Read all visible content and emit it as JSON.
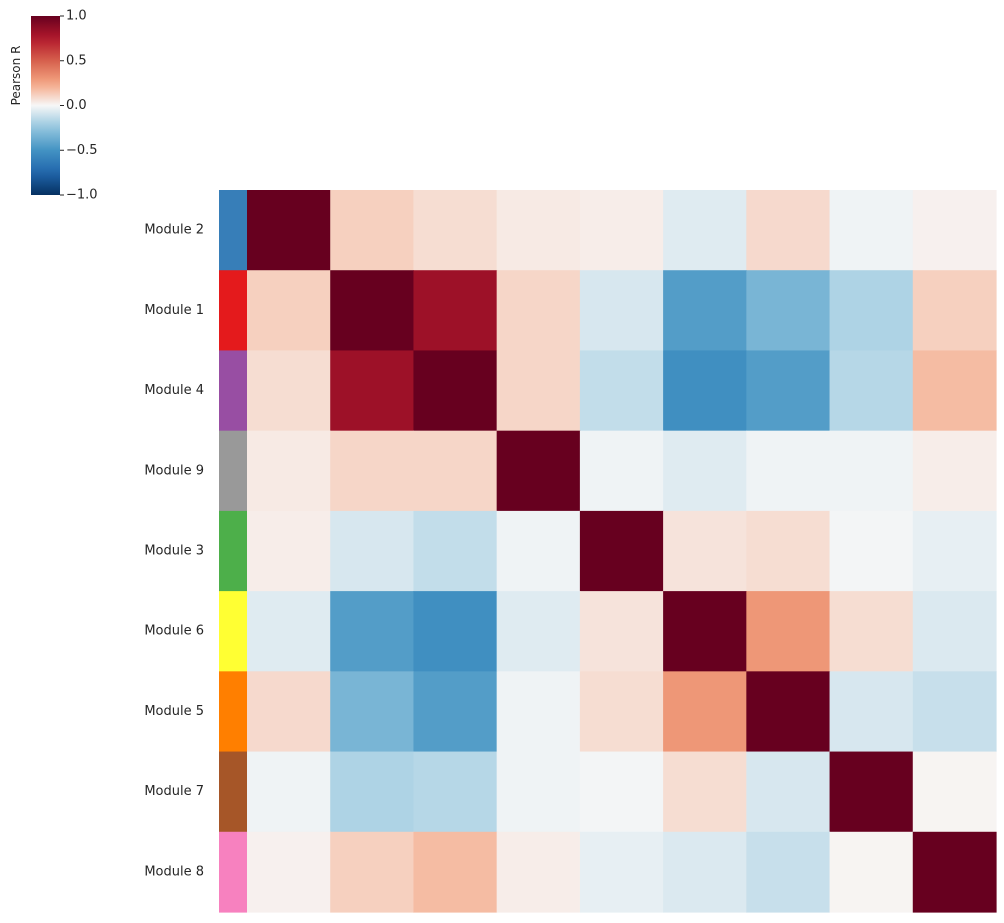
{
  "chart_data": {
    "type": "heatmap",
    "title": "",
    "rows": [
      "Module 2",
      "Module 1",
      "Module 4",
      "Module 9",
      "Module 3",
      "Module 6",
      "Module 5",
      "Module 7",
      "Module 8"
    ],
    "row_colors": [
      "#377eb8",
      "#e41a1c",
      "#984ea3",
      "#999999",
      "#4daf4a",
      "#ffff33",
      "#ff7f00",
      "#a65628",
      "#f781bf"
    ],
    "values": [
      [
        1.0,
        0.12,
        0.08,
        0.04,
        0.03,
        -0.06,
        0.09,
        -0.02,
        0.02
      ],
      [
        0.12,
        1.0,
        0.82,
        0.1,
        -0.08,
        -0.45,
        -0.33,
        -0.18,
        0.12
      ],
      [
        0.08,
        0.82,
        1.0,
        0.1,
        -0.13,
        -0.52,
        -0.45,
        -0.16,
        0.18
      ],
      [
        0.04,
        0.1,
        0.1,
        1.0,
        -0.02,
        -0.06,
        -0.02,
        -0.02,
        0.03
      ],
      [
        0.03,
        -0.08,
        -0.13,
        -0.02,
        1.0,
        0.06,
        0.08,
        -0.01,
        -0.04
      ],
      [
        -0.06,
        -0.45,
        -0.52,
        -0.06,
        0.06,
        1.0,
        0.3,
        0.08,
        -0.07
      ],
      [
        0.09,
        -0.33,
        -0.45,
        -0.02,
        0.08,
        0.3,
        1.0,
        -0.08,
        -0.12
      ],
      [
        -0.02,
        -0.18,
        -0.16,
        -0.02,
        -0.01,
        0.08,
        -0.08,
        1.0,
        0.01
      ],
      [
        0.02,
        0.12,
        0.18,
        0.03,
        -0.04,
        -0.07,
        -0.12,
        0.01,
        1.0
      ]
    ],
    "colorbar": {
      "label": "Pearson R",
      "vmin": -1.0,
      "vmax": 1.0,
      "colormap": "RdBu_r",
      "ticks": [
        1.0,
        0.5,
        0.0,
        -0.5,
        -1.0
      ],
      "tick_labels": [
        "1.0",
        "0.5",
        "0.0",
        "−0.5",
        "−1.0"
      ]
    }
  }
}
